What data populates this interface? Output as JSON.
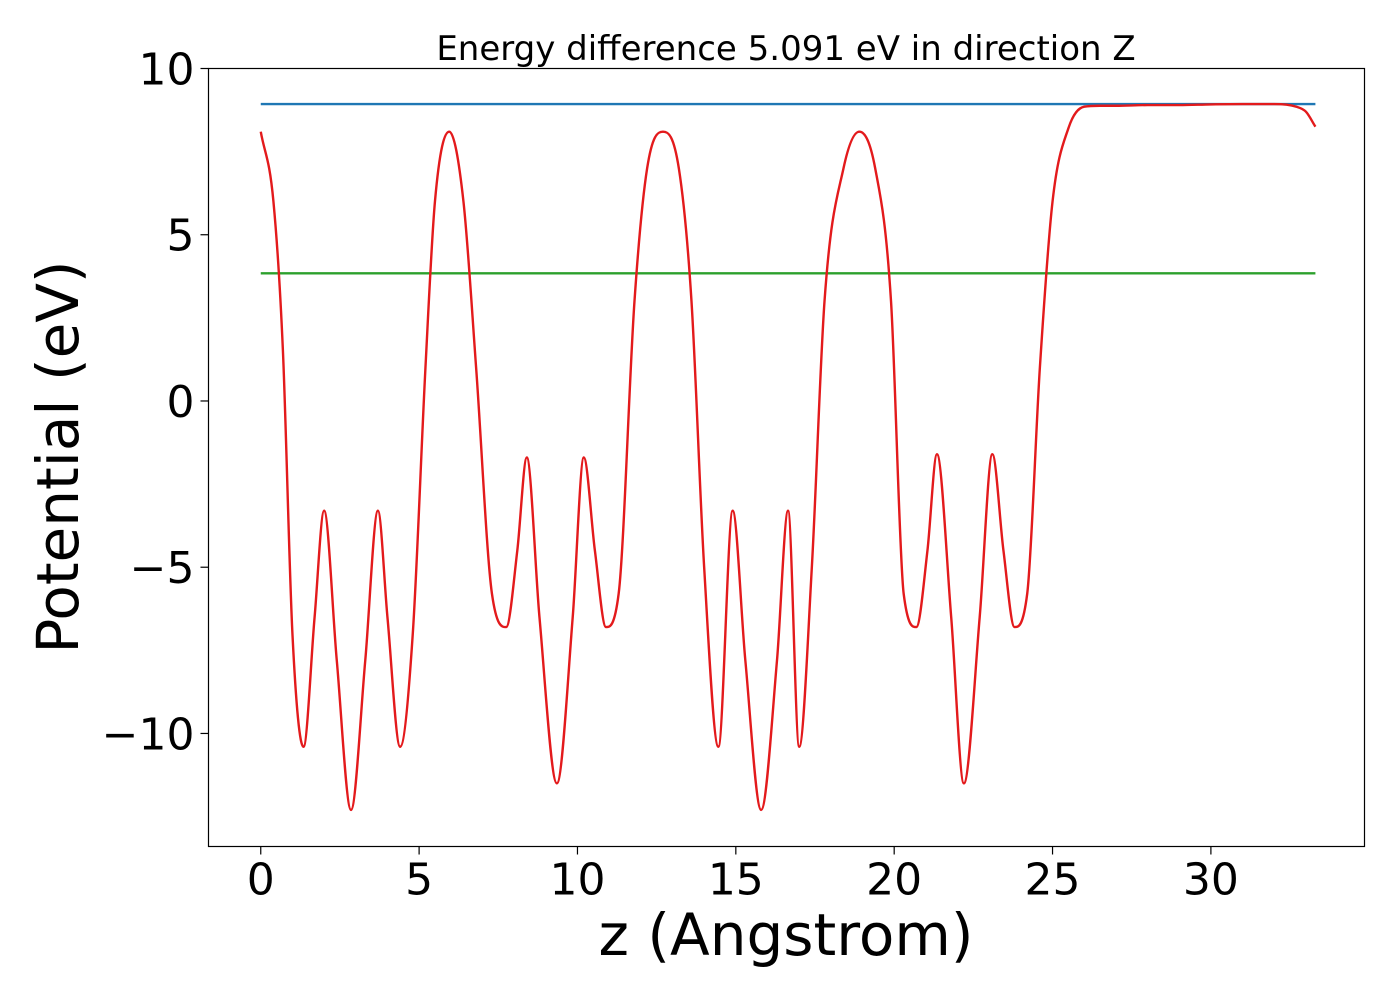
{
  "chart_data": {
    "type": "line",
    "title": "Energy difference 5.091 eV in direction Z",
    "xlabel": "z (Angstrom)",
    "ylabel": "Potential (eV)",
    "xlim": [
      -1.65,
      34.85
    ],
    "ylim": [
      -13.4,
      10
    ],
    "xticks": [
      0,
      5,
      10,
      15,
      20,
      25,
      30
    ],
    "xtick_labels": [
      "0",
      "5",
      "10",
      "15",
      "20",
      "25",
      "30"
    ],
    "yticks": [
      -10,
      -5,
      0,
      5,
      10
    ],
    "ytick_labels": [
      "−10",
      "−5",
      "0",
      "5",
      "10"
    ],
    "grid": false,
    "legend": "none",
    "series": [
      {
        "color": "#1f77b4",
        "style": "flat",
        "x": [
          0,
          33.3
        ],
        "y": [
          8.93,
          8.93
        ]
      },
      {
        "color": "#2ca02c",
        "style": "flat",
        "x": [
          0,
          33.3
        ],
        "y": [
          3.84,
          3.84
        ]
      },
      {
        "color": "#e31a1c",
        "style": "smooth",
        "x": [
          0,
          0.4,
          0.7,
          1.0,
          1.35,
          1.7,
          2.0,
          2.4,
          2.85,
          3.3,
          3.7,
          4.0,
          4.4,
          4.8,
          5.2,
          5.5,
          5.95,
          6.4,
          6.8,
          7.3,
          7.75,
          8.1,
          8.4,
          8.8,
          9.35,
          9.85,
          10.2,
          10.55,
          10.9,
          11.3,
          11.8,
          12.2,
          12.7,
          13.2,
          13.6,
          14.0,
          14.45,
          14.9,
          15.3,
          15.8,
          16.3,
          16.65,
          17.0,
          17.4,
          17.8,
          18.4,
          18.9,
          19.4,
          19.9,
          20.3,
          20.7,
          21.05,
          21.35,
          21.8,
          22.2,
          22.7,
          23.1,
          23.45,
          23.8,
          24.2,
          24.6,
          25.0,
          25.5,
          26.0,
          26.5,
          27.0,
          28.0,
          29.0,
          30.0,
          31.0,
          32.0,
          32.7,
          33.0,
          33.3
        ],
        "y": [
          8.1,
          6.0,
          1.5,
          -7.0,
          -10.4,
          -6.5,
          -3.3,
          -7.8,
          -12.3,
          -7.8,
          -3.3,
          -6.5,
          -10.4,
          -7.0,
          1.0,
          6.0,
          8.1,
          6.0,
          1.0,
          -5.8,
          -6.8,
          -4.5,
          -1.7,
          -6.5,
          -11.5,
          -6.5,
          -1.7,
          -4.5,
          -6.8,
          -5.8,
          3.0,
          7.0,
          8.1,
          7.0,
          3.0,
          -5.0,
          -10.4,
          -3.3,
          -7.8,
          -12.3,
          -7.8,
          -3.3,
          -10.4,
          -5.0,
          3.0,
          7.0,
          8.1,
          7.0,
          3.0,
          -5.8,
          -6.8,
          -4.5,
          -1.6,
          -6.5,
          -11.5,
          -6.5,
          -1.6,
          -4.5,
          -6.8,
          -5.8,
          1.0,
          6.0,
          8.2,
          8.85,
          8.88,
          8.88,
          8.9,
          8.9,
          8.92,
          8.93,
          8.93,
          8.85,
          8.7,
          8.25
        ]
      }
    ]
  }
}
